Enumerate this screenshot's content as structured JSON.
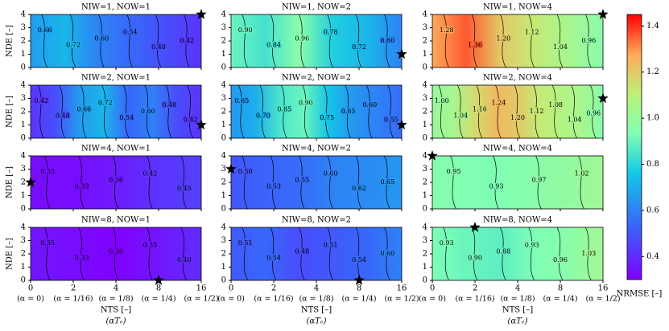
{
  "chart_data": {
    "type": "contour-grid",
    "xlabel": "NTS [–]",
    "xlabel_sub": "(αTₑ)",
    "ylabel": "NDE [–]",
    "xlim": [
      0,
      16
    ],
    "ylim": [
      0,
      4
    ],
    "xticks": [
      0,
      2,
      4,
      8,
      16
    ],
    "xtick_sublabels": [
      "(α = 0)",
      "(α = 1/16)",
      "(α = 1/8)",
      "(α = 1/4)",
      "(α = 1/2)"
    ],
    "yticks": [
      0,
      1,
      2,
      3,
      4
    ],
    "marker_color": "#000000",
    "colorbar": {
      "label": "NRMSE [–]",
      "lim": [
        0.3,
        1.45
      ],
      "ticks": [
        0.4,
        0.6,
        0.8,
        {
          "value": 1,
          "label": "1.0"
        },
        1.2,
        1.4
      ]
    },
    "panels": [
      {
        "title": "NIW=1, NOW=1",
        "levels": [
          0.66,
          0.72,
          {
            "value": 0.6,
            "label": "0.60"
          },
          0.54,
          0.48,
          0.42
        ],
        "best": {
          "x": 16,
          "y": 4
        }
      },
      {
        "title": "NIW=1, NOW=2",
        "levels": [
          {
            "value": 0.9,
            "label": "0.90"
          },
          0.84,
          0.96,
          0.78,
          0.72,
          {
            "value": 0.6,
            "label": "0.60"
          }
        ],
        "best": {
          "x": 16,
          "y": 1
        }
      },
      {
        "title": "NIW=1, NOW=4",
        "levels": [
          1.28,
          1.36,
          {
            "value": 1.2,
            "label": "1.20"
          },
          1.12,
          1.04,
          0.96
        ],
        "best": {
          "x": 16,
          "y": 4
        }
      },
      {
        "title": "NIW=2, NOW=1",
        "levels": [
          0.42,
          0.48,
          0.66,
          0.72,
          0.54,
          {
            "value": 0.6,
            "label": "0.60"
          },
          0.48,
          0.42
        ],
        "best": {
          "x": 16,
          "y": 1
        }
      },
      {
        "title": "NIW=2, NOW=2",
        "levels": [
          0.65,
          {
            "value": 0.7,
            "label": "0.70"
          },
          0.85,
          {
            "value": 0.9,
            "label": "0.90"
          },
          0.75,
          0.65,
          {
            "value": 0.6,
            "label": "0.60"
          },
          0.55
        ],
        "best": {
          "x": 16,
          "y": 1
        }
      },
      {
        "title": "NIW=2, NOW=4",
        "levels": [
          {
            "value": 1,
            "label": "1.00"
          },
          1.04,
          1.16,
          1.24,
          {
            "value": 1.2,
            "label": "1.20"
          },
          1.12,
          1.08,
          1.04,
          0.96
        ],
        "best": {
          "x": 16,
          "y": 3
        }
      },
      {
        "title": "NIW=4, NOW=1",
        "levels": [
          0.33,
          0.33,
          0.36,
          0.42,
          0.45
        ],
        "best": {
          "x": 0,
          "y": 2
        }
      },
      {
        "title": "NIW=4, NOW=2",
        "levels": [
          {
            "value": 0.5,
            "label": "0.50"
          },
          0.53,
          0.55,
          {
            "value": 0.6,
            "label": "0.60"
          },
          0.62,
          0.65
        ],
        "best": {
          "x": 0,
          "y": 3
        }
      },
      {
        "title": "NIW=4, NOW=4",
        "levels": [
          0.95,
          0.93,
          0.97,
          1.02
        ],
        "best": {
          "x": 0,
          "y": 4
        }
      },
      {
        "title": "NIW=8, NOW=1",
        "levels": [
          0.35,
          0.33,
          {
            "value": 0.3,
            "label": "0.30"
          },
          0.35,
          {
            "value": 0.4,
            "label": "0.40"
          }
        ],
        "best": {
          "x": 8,
          "y": 0
        }
      },
      {
        "title": "NIW=8, NOW=2",
        "levels": [
          0.51,
          0.54,
          0.48,
          0.51,
          0.54,
          {
            "value": 0.6,
            "label": "0.60"
          }
        ],
        "best": {
          "x": 8,
          "y": 0
        }
      },
      {
        "title": "NIW=8, NOW=4",
        "levels": [
          0.93,
          {
            "value": 0.9,
            "label": "0.90"
          },
          0.88,
          0.93,
          0.96,
          1.03
        ],
        "best": {
          "x": 2,
          "y": 4
        }
      }
    ]
  }
}
